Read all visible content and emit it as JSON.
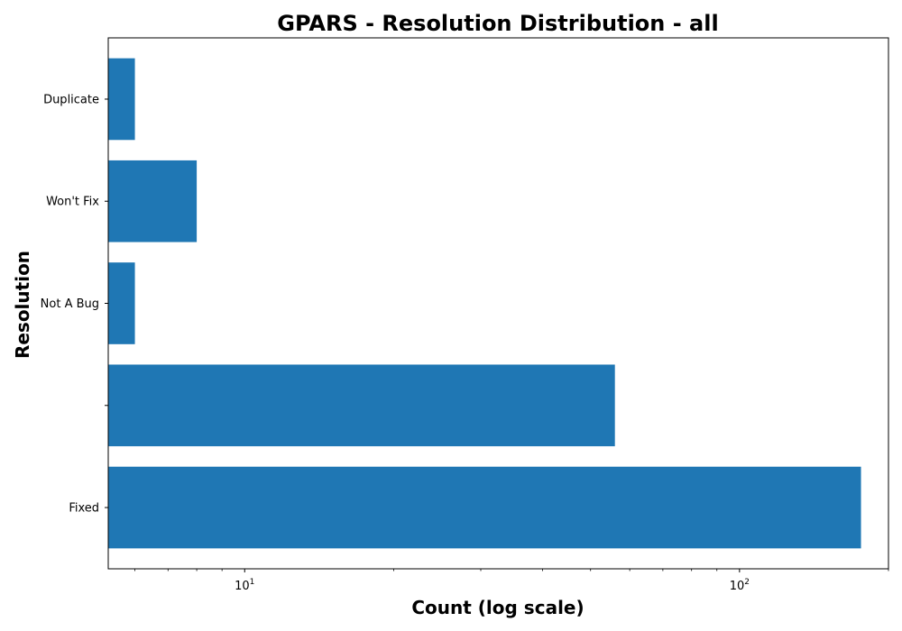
{
  "chart_data": {
    "type": "bar",
    "orientation": "horizontal",
    "title": "GPARS - Resolution Distribution - all",
    "xlabel": "Count (log scale)",
    "ylabel": "Resolution",
    "x_scale": "log",
    "xlim": [
      5.3,
      200
    ],
    "x_major_ticks": [
      {
        "value": 10,
        "base": "10",
        "exponent": "1"
      },
      {
        "value": 100,
        "base": "10",
        "exponent": "2"
      }
    ],
    "categories": [
      "Fixed",
      "",
      "Not A Bug",
      "Won't Fix",
      "Duplicate"
    ],
    "values": [
      176,
      56,
      6,
      8,
      6
    ],
    "bar_color": "#1f77b4",
    "grid": false,
    "legend": "none"
  }
}
